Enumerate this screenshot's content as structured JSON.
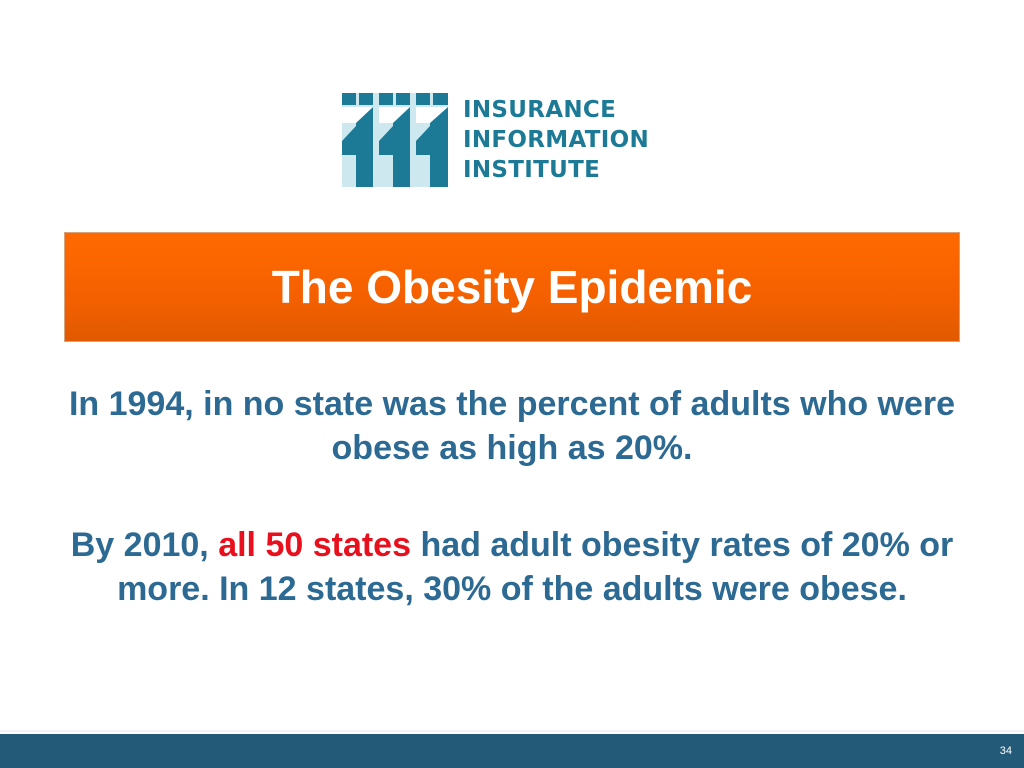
{
  "logo": {
    "line1": "INSURANCE",
    "line2": "INFORMATION",
    "line3": "INSTITUTE",
    "colors": {
      "dark": "#1c7a96",
      "light": "#cde9ef"
    }
  },
  "slide": {
    "title": "The Obesity Epidemic",
    "paragraph1": "In 1994, in no state was the percent of adults who were obese as high as 20%.",
    "paragraph2": {
      "before": "By 2010, ",
      "highlight": "all 50 states",
      "after": " had adult obesity rates of 20% or more. In 12 states, 30% of the adults were obese."
    },
    "page_number": "34"
  },
  "colors": {
    "title_banner": "#ff6a00",
    "body_text": "#2c6a93",
    "highlight": "#e8101c",
    "footer": "#235a78"
  }
}
